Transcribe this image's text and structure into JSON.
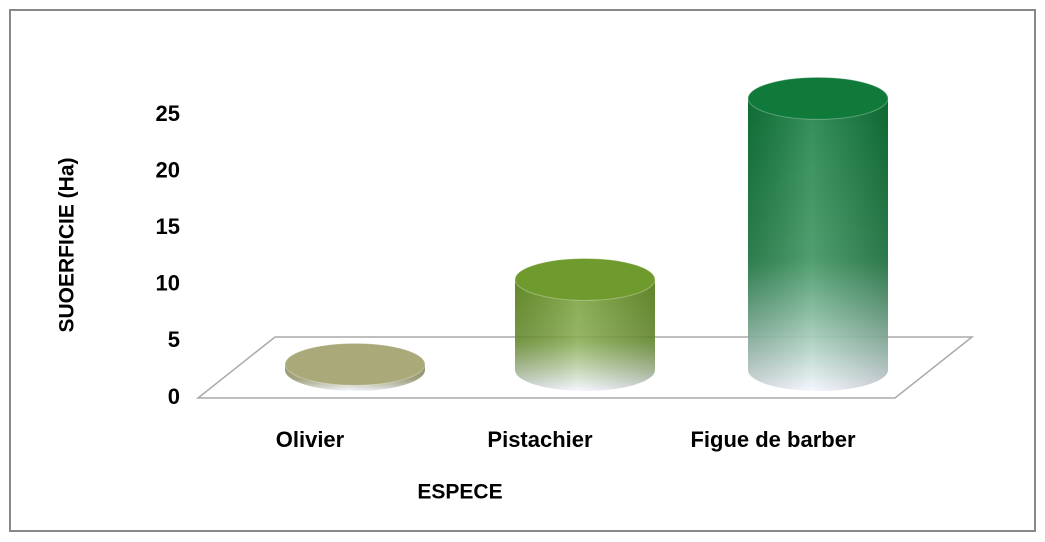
{
  "chart_data": {
    "type": "bar3d",
    "categories": [
      "Olivier",
      "Pistachier",
      "Figue de barber"
    ],
    "values": [
      0.5,
      8,
      24
    ],
    "colors": [
      "#a9a97a",
      "#6f9a2e",
      "#0f7a3a"
    ],
    "ylim": [
      0,
      25
    ],
    "yticks": [
      0,
      5,
      10,
      15,
      20,
      25
    ],
    "grid": false,
    "xlabel": "ESPECE",
    "ylabel": "SUOERFICIE (Ha)"
  }
}
